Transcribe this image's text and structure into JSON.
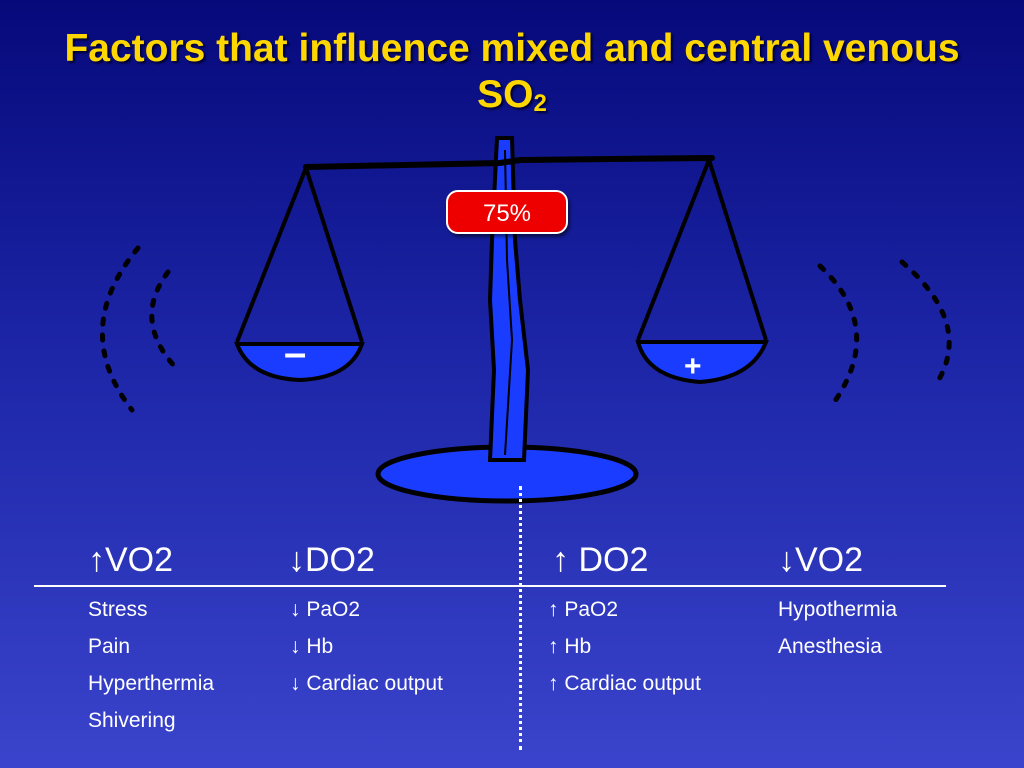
{
  "title": {
    "line1": "Factors that influence mixed and central venous",
    "line2_main": "SO",
    "line2_sub": "2"
  },
  "scale": {
    "badge_value": "75%",
    "left_pan_sign": "–",
    "right_pan_sign": "+"
  },
  "columns": [
    {
      "arrow": "↑",
      "header": "VO2",
      "items": [
        "Stress",
        "Pain",
        "Hyperthermia",
        "Shivering"
      ]
    },
    {
      "arrow": "↓",
      "header": "DO2",
      "items": [
        "↓ PaO2",
        "↓ Hb",
        "↓ Cardiac output"
      ]
    },
    {
      "arrow": "↑",
      "header": " DO2",
      "items": [
        "↑ PaO2",
        "↑ Hb",
        "↑ Cardiac output"
      ]
    },
    {
      "arrow": "↓",
      "header": "VO2",
      "items": [
        "Hypothermia",
        "Anesthesia"
      ]
    }
  ],
  "colors": {
    "title": "#ffd700",
    "pan_fill": "#1a3cff",
    "badge": "#ee0000"
  }
}
